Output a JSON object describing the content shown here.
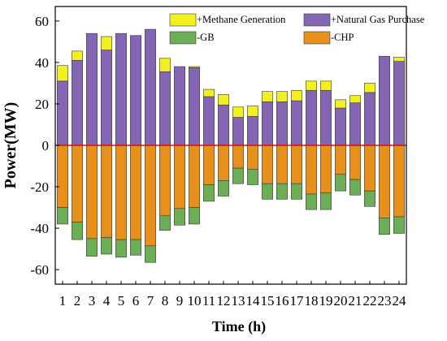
{
  "chart_data": {
    "type": "bar",
    "stacked": true,
    "title": "",
    "xlabel": "Time (h)",
    "ylabel": "Power(MW)",
    "ylim": [
      -67,
      67
    ],
    "yticks": [
      -60,
      -40,
      -20,
      0,
      20,
      40,
      60
    ],
    "categories": [
      "1",
      "2",
      "3",
      "4",
      "5",
      "6",
      "7",
      "8",
      "9",
      "10",
      "11",
      "12",
      "13",
      "14",
      "15",
      "16",
      "17",
      "18",
      "19",
      "20",
      "21",
      "22",
      "23",
      "24"
    ],
    "legend_position": "top",
    "series": [
      {
        "name": "+Natural Gas Purchase",
        "color": "#8466B4",
        "values": [
          31,
          41,
          54,
          46,
          54,
          53,
          56,
          35.5,
          38,
          37.5,
          23.5,
          19.5,
          13.5,
          14,
          21,
          21,
          21.5,
          26.5,
          26.5,
          18,
          20.5,
          25.5,
          43,
          40.5
        ]
      },
      {
        "name": "+Methane Generation",
        "color": "#F2F020",
        "values": [
          7.5,
          4.5,
          0,
          6.5,
          0,
          0,
          0,
          6.5,
          0,
          0.5,
          3.5,
          5,
          5,
          5,
          5,
          5,
          5,
          4.5,
          4.5,
          4,
          3.5,
          4.5,
          0,
          2
        ]
      },
      {
        "name": "-CHP",
        "color": "#E8901C",
        "values": [
          -30,
          -37,
          -45,
          -44.5,
          -45.5,
          -45.5,
          -48.5,
          -34,
          -30.5,
          -30,
          -19,
          -17,
          -11,
          -11.5,
          -18.5,
          -18.5,
          -18.5,
          -23.5,
          -23,
          -14,
          -16.5,
          -22,
          -35,
          -34.5
        ]
      },
      {
        "name": "-GB",
        "color": "#6BAE56",
        "values": [
          -8,
          -8.5,
          -8.5,
          -8,
          -8.5,
          -7.5,
          -8,
          -7,
          -8,
          -8,
          -8,
          -7.5,
          -7.5,
          -7.5,
          -7.5,
          -7.5,
          -7.5,
          -7.5,
          -8,
          -8,
          -7.5,
          -7.5,
          -8,
          -8
        ]
      }
    ]
  }
}
